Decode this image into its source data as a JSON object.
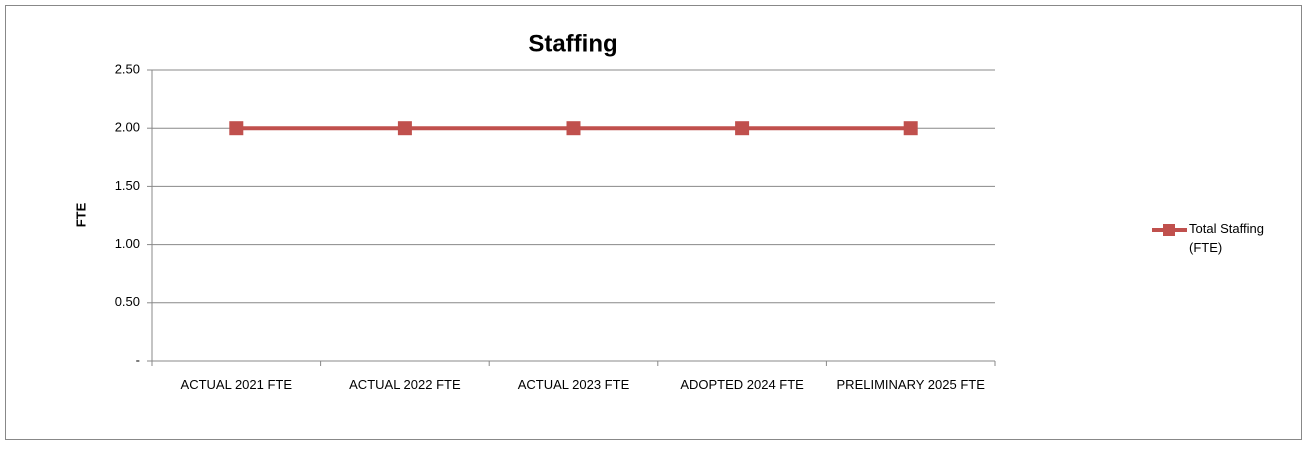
{
  "chart_data": {
    "type": "line",
    "title": "Staffing",
    "y_label": "FTE",
    "categories": [
      "ACTUAL 2021 FTE",
      "ACTUAL 2022 FTE",
      "ACTUAL 2023 FTE",
      "ADOPTED 2024 FTE",
      "PRELIMINARY 2025 FTE"
    ],
    "series": [
      {
        "name": "Total Staffing (FTE)",
        "color": "#c0504d",
        "values": [
          2,
          2,
          2,
          2,
          2
        ]
      }
    ],
    "ylim": [
      0,
      2.5
    ],
    "yticks": [
      {
        "value": 0,
        "label": "-"
      },
      {
        "value": 0.5,
        "label": "0.50"
      },
      {
        "value": 1,
        "label": "1.00"
      },
      {
        "value": 1.5,
        "label": "1.50"
      },
      {
        "value": 2,
        "label": "2.00"
      },
      {
        "value": 2.5,
        "label": "2.50"
      }
    ],
    "grid": true,
    "legend": "right"
  }
}
